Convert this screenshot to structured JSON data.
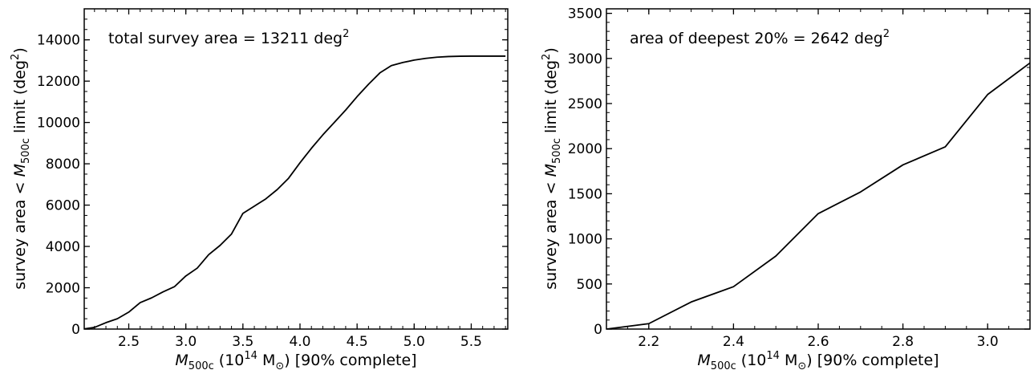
{
  "chart_data": [
    {
      "type": "line",
      "annotation": {
        "text": "total survey area = 13211 deg",
        "sup": "2"
      },
      "xlabel": {
        "sym": "M",
        "sub": "500c",
        "pre": " (10",
        "exp": "14",
        "unit": " M",
        "sun": "⊙",
        "post": ") [90% complete]"
      },
      "ylabel": {
        "pre": "survey area < ",
        "sym": "M",
        "sub": "500c",
        "post": " limit (deg",
        "exp": "2",
        "close": ")"
      },
      "xlim": [
        2.11,
        5.82
      ],
      "ylim": [
        0,
        15500
      ],
      "xticks": [
        2.5,
        3.0,
        3.5,
        4.0,
        4.5,
        5.0,
        5.5
      ],
      "xtick_labels": [
        "2.5",
        "3.0",
        "3.5",
        "4.0",
        "4.5",
        "5.0",
        "5.5"
      ],
      "x_minor_step": 0.1,
      "yticks": [
        0,
        2000,
        4000,
        6000,
        8000,
        10000,
        12000,
        14000
      ],
      "ytick_labels": [
        "0",
        "2000",
        "4000",
        "6000",
        "8000",
        "10000",
        "12000",
        "14000"
      ],
      "y_minor_step": 500,
      "series": [
        {
          "color": "#000000",
          "x": [
            2.1,
            2.2,
            2.3,
            2.4,
            2.5,
            2.6,
            2.7,
            2.8,
            2.9,
            3.0,
            3.1,
            3.2,
            3.3,
            3.4,
            3.5,
            3.6,
            3.7,
            3.8,
            3.9,
            4.0,
            4.1,
            4.2,
            4.3,
            4.4,
            4.5,
            4.6,
            4.7,
            4.8,
            4.9,
            5.0,
            5.1,
            5.2,
            5.3,
            5.4,
            5.5,
            5.6,
            5.7,
            5.8
          ],
          "y": [
            0,
            80,
            310,
            500,
            820,
            1280,
            1510,
            1800,
            2050,
            2570,
            2950,
            3600,
            4050,
            4600,
            5600,
            5950,
            6300,
            6750,
            7300,
            8050,
            8750,
            9400,
            10000,
            10600,
            11250,
            11850,
            12400,
            12750,
            12900,
            13020,
            13100,
            13160,
            13190,
            13205,
            13211,
            13211,
            13211,
            13211
          ]
        }
      ]
    },
    {
      "type": "line",
      "annotation": {
        "text": "area of deepest 20% = 2642 deg",
        "sup": "2"
      },
      "xlabel": {
        "sym": "M",
        "sub": "500c",
        "pre": " (10",
        "exp": "14",
        "unit": " M",
        "sun": "⊙",
        "post": ") [90% complete]"
      },
      "ylabel": {
        "pre": "survey area < ",
        "sym": "M",
        "sub": "500c",
        "post": " limit (deg",
        "exp": "2",
        "close": ")"
      },
      "xlim": [
        2.1,
        3.1
      ],
      "ylim": [
        0,
        3550
      ],
      "xticks": [
        2.2,
        2.4,
        2.6,
        2.8,
        3.0
      ],
      "xtick_labels": [
        "2.2",
        "2.4",
        "2.6",
        "2.8",
        "3.0"
      ],
      "x_minor_step": 0.05,
      "yticks": [
        0,
        500,
        1000,
        1500,
        2000,
        2500,
        3000,
        3500
      ],
      "ytick_labels": [
        "0",
        "500",
        "1000",
        "1500",
        "2000",
        "2500",
        "3000",
        "3500"
      ],
      "y_minor_step": 100,
      "series": [
        {
          "color": "#000000",
          "x": [
            2.1,
            2.2,
            2.3,
            2.4,
            2.5,
            2.6,
            2.7,
            2.8,
            2.9,
            3.0,
            3.1
          ],
          "y": [
            0,
            60,
            300,
            470,
            810,
            1280,
            1520,
            1820,
            2020,
            2600,
            2950
          ]
        }
      ]
    }
  ]
}
